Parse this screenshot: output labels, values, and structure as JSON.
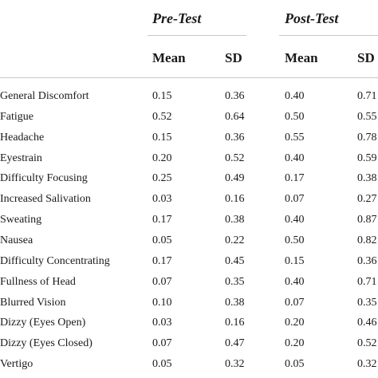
{
  "table": {
    "groups": [
      {
        "label": "Pre-Test"
      },
      {
        "label": "Post-Test"
      }
    ],
    "columns": [
      "Mean",
      "SD",
      "Mean",
      "SD"
    ],
    "rows": [
      {
        "symptom": "General Discomfort",
        "values": [
          "0.15",
          "0.36",
          "0.40",
          "0.71"
        ]
      },
      {
        "symptom": "Fatigue",
        "values": [
          "0.52",
          "0.64",
          "0.50",
          "0.55"
        ]
      },
      {
        "symptom": "Headache",
        "values": [
          "0.15",
          "0.36",
          "0.55",
          "0.78"
        ]
      },
      {
        "symptom": "Eyestrain",
        "values": [
          "0.20",
          "0.52",
          "0.40",
          "0.59"
        ]
      },
      {
        "symptom": "Difficulty Focusing",
        "values": [
          "0.25",
          "0.49",
          "0.17",
          "0.38"
        ]
      },
      {
        "symptom": "Increased Salivation",
        "values": [
          "0.03",
          "0.16",
          "0.07",
          "0.27"
        ]
      },
      {
        "symptom": "Sweating",
        "values": [
          "0.17",
          "0.38",
          "0.40",
          "0.87"
        ]
      },
      {
        "symptom": "Nausea",
        "values": [
          "0.05",
          "0.22",
          "0.50",
          "0.82"
        ]
      },
      {
        "symptom": "Difficulty Concentrating",
        "values": [
          "0.17",
          "0.45",
          "0.15",
          "0.36"
        ]
      },
      {
        "symptom": "Fullness of Head",
        "values": [
          "0.07",
          "0.35",
          "0.40",
          "0.71"
        ]
      },
      {
        "symptom": "Blurred Vision",
        "values": [
          "0.10",
          "0.38",
          "0.07",
          "0.35"
        ]
      },
      {
        "symptom": "Dizzy (Eyes Open)",
        "values": [
          "0.03",
          "0.16",
          "0.20",
          "0.46"
        ]
      },
      {
        "symptom": "Dizzy (Eyes Closed)",
        "values": [
          "0.07",
          "0.47",
          "0.20",
          "0.52"
        ]
      },
      {
        "symptom": "Vertigo",
        "values": [
          "0.05",
          "0.32",
          "0.05",
          "0.32"
        ]
      }
    ]
  }
}
